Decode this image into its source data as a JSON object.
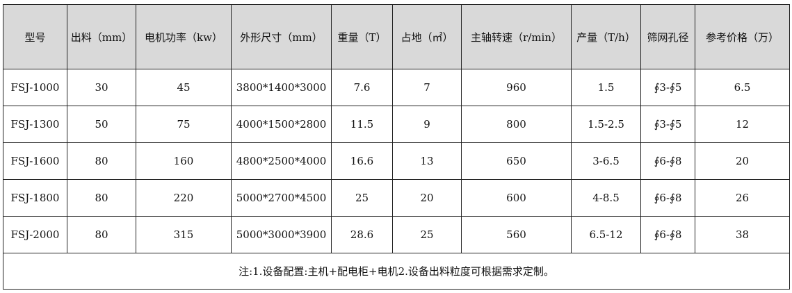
{
  "colors": {
    "header_bg": "#d9d9d9",
    "border": "#222222"
  },
  "headers": [
    "型号",
    "出料（mm）",
    "电机功率（kw）",
    "外形尺寸（mm）",
    "重量（T）",
    "占地（㎡）",
    "主轴转速（r/min）",
    "产量（T/h）",
    "筛网孔径",
    "参考价格（万）"
  ],
  "rows": [
    [
      "FSJ-1000",
      "30",
      "45",
      "3800*1400*3000",
      "7.6",
      "7",
      "960",
      "1.5",
      "∮3-∮5",
      "6.5"
    ],
    [
      "FSJ-1300",
      "50",
      "75",
      "4000*1500*2800",
      "11.5",
      "9",
      "800",
      "1.5-2.5",
      "∮3-∮5",
      "12"
    ],
    [
      "FSJ-1600",
      "80",
      "160",
      "4800*2500*4000",
      "16.6",
      "13",
      "650",
      "3-6.5",
      "∮6-∮8",
      "20"
    ],
    [
      "FSJ-1800",
      "80",
      "220",
      "5000*2700*4500",
      "25",
      "20",
      "600",
      "4-8.5",
      "∮6-∮8",
      "26"
    ],
    [
      "FSJ-2000",
      "80",
      "315",
      "5000*3000*3900",
      "28.6",
      "25",
      "560",
      "6.5-12",
      "∮6-∮8",
      "38"
    ]
  ],
  "note": "注:1.设备配置:主机+配电柜+电机2.设备出料粒度可根据需求定制。"
}
